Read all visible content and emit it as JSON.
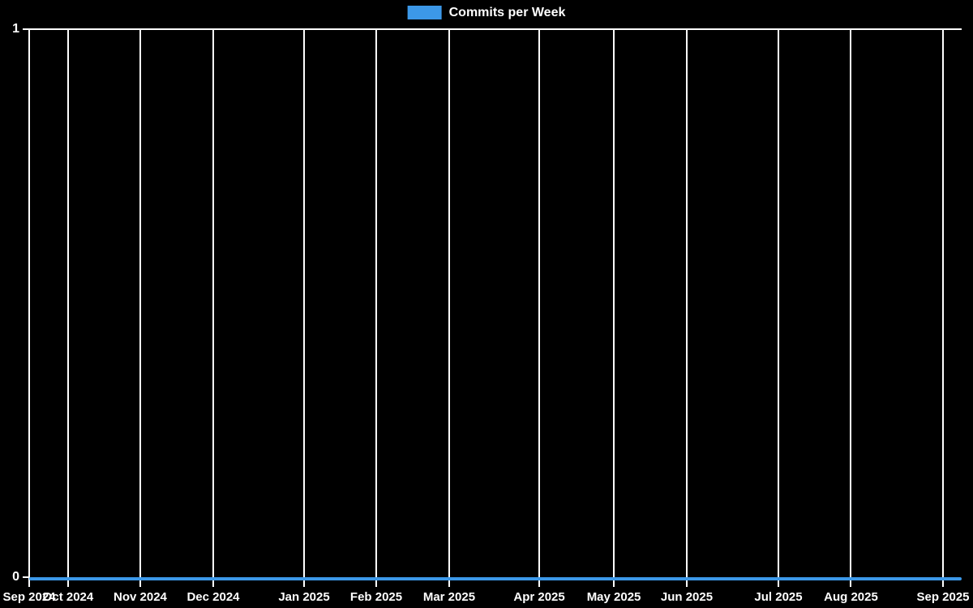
{
  "chart": {
    "background": "#000000",
    "text_color": "#ffffff",
    "grid_color": "#ffffff",
    "accent_color": "#3c98e8"
  },
  "legend": {
    "label": "Commits per Week",
    "swatch_color": "#3c98e8"
  },
  "y_axis": {
    "max_label": "1",
    "min_label": "0"
  },
  "chart_data": {
    "type": "line",
    "title": "Commits per Week",
    "xlabel": "",
    "ylabel": "",
    "ylim": [
      0,
      1
    ],
    "y_ticks": [
      0,
      1
    ],
    "grid": "vertical month gridlines plus top border, white on black",
    "legend_position": "top-center",
    "x_ticks": [
      {
        "label": "Sep 2024",
        "pos": 0.0
      },
      {
        "label": "Oct 2024",
        "pos": 0.0417
      },
      {
        "label": "Nov 2024",
        "pos": 0.1191
      },
      {
        "label": "Dec 2024",
        "pos": 0.1974
      },
      {
        "label": "Jan 2025",
        "pos": 0.2948
      },
      {
        "label": "Feb 2025",
        "pos": 0.3722
      },
      {
        "label": "Mar 2025",
        "pos": 0.4504
      },
      {
        "label": "Apr 2025",
        "pos": 0.547
      },
      {
        "label": "May 2025",
        "pos": 0.627
      },
      {
        "label": "Jun 2025",
        "pos": 0.7052
      },
      {
        "label": "Jul 2025",
        "pos": 0.8035
      },
      {
        "label": "Aug 2025",
        "pos": 0.8813
      },
      {
        "label": "Sep 2025",
        "pos": 0.98
      }
    ],
    "series": [
      {
        "name": "Commits per Week",
        "color": "#3c98e8",
        "values": [
          0,
          0,
          0,
          0,
          0,
          0,
          0,
          0,
          0,
          0,
          0,
          0,
          0,
          0,
          0,
          0,
          0,
          0,
          0,
          0,
          0,
          0,
          0,
          0,
          0,
          0,
          0,
          0,
          0,
          0,
          0,
          0,
          0,
          0,
          0,
          0,
          0,
          0,
          0,
          0,
          0,
          0,
          0,
          0,
          0,
          0,
          0,
          0,
          0,
          0,
          0,
          0
        ]
      }
    ]
  }
}
